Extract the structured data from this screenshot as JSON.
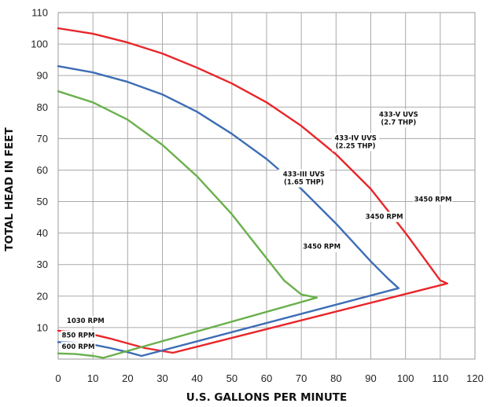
{
  "chart_data": {
    "type": "line",
    "xlabel": "U.S. GALLONS PER MINUTE",
    "ylabel": "TOTAL HEAD IN FEET",
    "xlim": [
      0,
      120
    ],
    "ylim": [
      0,
      110
    ],
    "x_ticks": [
      "0",
      "10",
      "20",
      "30",
      "40",
      "50",
      "60",
      "70",
      "80",
      "90",
      "100",
      "110",
      "120"
    ],
    "y_ticks": [
      "10",
      "20",
      "30",
      "40",
      "50",
      "60",
      "70",
      "80",
      "90",
      "100",
      "110"
    ],
    "x_tick_values": [
      0,
      10,
      20,
      30,
      40,
      50,
      60,
      70,
      80,
      90,
      100,
      110,
      120
    ],
    "y_tick_values": [
      10,
      20,
      30,
      40,
      50,
      60,
      70,
      80,
      90,
      100,
      110
    ],
    "grid": true,
    "series": [
      {
        "name": "433-V UVS (2.7 THP)",
        "color": "#e8262a",
        "points": [
          [
            0,
            105
          ],
          [
            10,
            103.3
          ],
          [
            20,
            100.5
          ],
          [
            30,
            97
          ],
          [
            40,
            92.5
          ],
          [
            50,
            87.5
          ],
          [
            60,
            81.5
          ],
          [
            70,
            74
          ],
          [
            80,
            65
          ],
          [
            90,
            54
          ],
          [
            100,
            40
          ],
          [
            105,
            32.5
          ],
          [
            110,
            25
          ],
          [
            112,
            24
          ],
          [
            33,
            2
          ],
          [
            25,
            3.5
          ],
          [
            20,
            5
          ],
          [
            15,
            6.5
          ],
          [
            10,
            7.8
          ],
          [
            5,
            8.6
          ],
          [
            0,
            9
          ]
        ]
      },
      {
        "name": "433-IV UVS (2.25 THP)",
        "color": "#3d6db5",
        "points": [
          [
            0,
            93
          ],
          [
            10,
            91
          ],
          [
            20,
            88
          ],
          [
            30,
            84
          ],
          [
            40,
            78.5
          ],
          [
            50,
            71.5
          ],
          [
            60,
            63.5
          ],
          [
            70,
            54
          ],
          [
            80,
            43
          ],
          [
            90,
            31
          ],
          [
            95,
            25.5
          ],
          [
            98,
            22.5
          ],
          [
            24,
            1
          ],
          [
            20,
            2.2
          ],
          [
            15,
            3.5
          ],
          [
            10,
            4.6
          ],
          [
            5,
            5.2
          ],
          [
            0,
            5.4
          ]
        ]
      },
      {
        "name": "433-III UVS (1.65 THP)",
        "color": "#6ab04c",
        "points": [
          [
            0,
            85
          ],
          [
            10,
            81.5
          ],
          [
            20,
            76
          ],
          [
            30,
            68
          ],
          [
            40,
            58
          ],
          [
            50,
            46
          ],
          [
            60,
            32
          ],
          [
            65,
            25
          ],
          [
            70,
            20.5
          ],
          [
            74.5,
            19.5
          ],
          [
            13,
            0.4
          ],
          [
            10,
            1
          ],
          [
            5,
            1.6
          ],
          [
            0,
            1.8
          ]
        ]
      }
    ],
    "annotations": [
      {
        "lines": [
          "433-V UVS",
          "(2.7 THP)"
        ],
        "x": 92.5,
        "y": 77
      },
      {
        "lines": [
          "433-IV UVS",
          "(2.25 THP)"
        ],
        "x": 79.5,
        "y": 69.5
      },
      {
        "lines": [
          "433-III UVS",
          "(1.65 THP)"
        ],
        "x": 64,
        "y": 58
      },
      {
        "lines": [
          "3450 RPM"
        ],
        "x": 103,
        "y": 50
      },
      {
        "lines": [
          "3450 RPM"
        ],
        "x": 89,
        "y": 44.5
      },
      {
        "lines": [
          "3450 RPM"
        ],
        "x": 71,
        "y": 35
      },
      {
        "lines": [
          "1030 RPM"
        ],
        "x": 3,
        "y": 11.5
      },
      {
        "lines": [
          "850 RPM"
        ],
        "x": 1.5,
        "y": 6.8
      },
      {
        "lines": [
          "600 RPM"
        ],
        "x": 1.5,
        "y": 3.2
      }
    ]
  }
}
